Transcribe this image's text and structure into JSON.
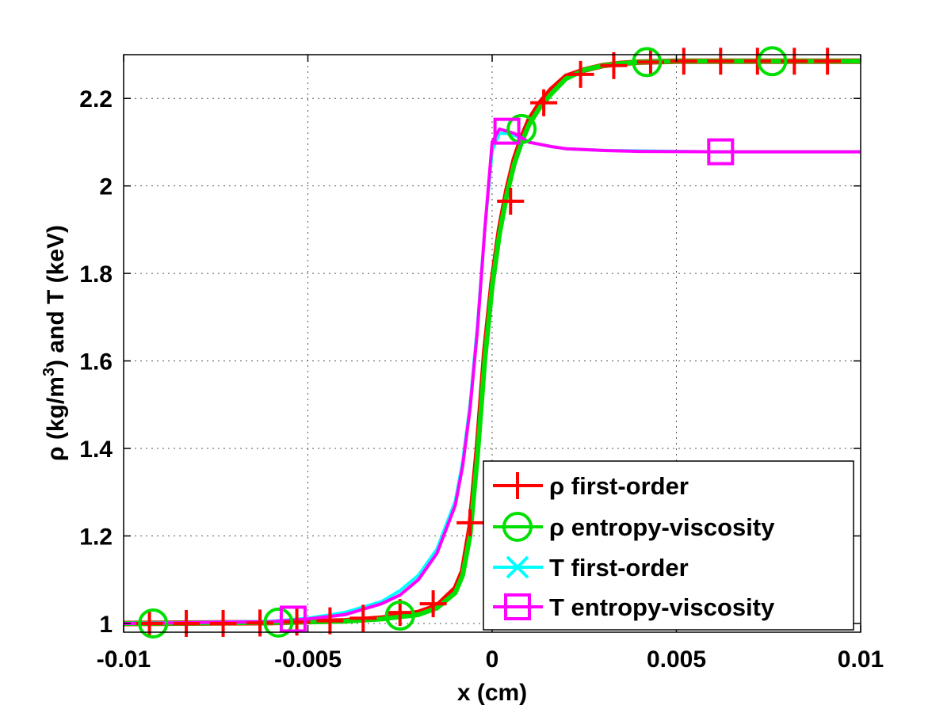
{
  "chart_data": {
    "type": "line",
    "xlabel": "x (cm)",
    "ylabel_parts": [
      "ρ (kg/m",
      "3",
      ") and T (keV)"
    ],
    "xlim": [
      -0.01,
      0.01
    ],
    "ylim": [
      0.98,
      2.3
    ],
    "xticks": [
      -0.01,
      -0.005,
      0,
      0.005,
      0.01
    ],
    "xtick_labels": [
      "-0.01",
      "-0.005",
      "0",
      "0.005",
      "0.01"
    ],
    "yticks": [
      1,
      1.2,
      1.4,
      1.6,
      1.8,
      2,
      2.2
    ],
    "ytick_labels": [
      "1",
      "1.2",
      "1.4",
      "1.6",
      "1.8",
      "2",
      "2.2"
    ],
    "grid": true,
    "legend_position": "bottom-right",
    "series": [
      {
        "name": "ρ first-order",
        "color": "#ff0000",
        "marker": "plus",
        "x": [
          -0.01,
          -0.006,
          -0.004,
          -0.003,
          -0.002,
          -0.0015,
          -0.001,
          -0.0008,
          -0.0006,
          -0.0004,
          -0.0002,
          0,
          0.0002,
          0.0004,
          0.0006,
          0.0008,
          0.001,
          0.0013,
          0.0016,
          0.002,
          0.0025,
          0.003,
          0.0035,
          0.004,
          0.005,
          0.006,
          0.008,
          0.01
        ],
        "y": [
          1.0,
          1.002,
          1.006,
          1.012,
          1.025,
          1.04,
          1.08,
          1.12,
          1.22,
          1.4,
          1.62,
          1.78,
          1.9,
          1.99,
          2.06,
          2.11,
          2.15,
          2.19,
          2.22,
          2.25,
          2.265,
          2.275,
          2.28,
          2.283,
          2.285,
          2.285,
          2.285,
          2.285
        ],
        "markers_x": [
          -0.0093,
          -0.0083,
          -0.0073,
          -0.0063,
          -0.0053,
          -0.0044,
          -0.0035,
          -0.0025,
          -0.0016,
          -0.0006,
          0.0005,
          0.0014,
          0.0024,
          0.0033,
          0.0043,
          0.0052,
          0.0062,
          0.0072,
          0.0082,
          0.0091
        ],
        "markers_y": [
          1.0,
          1.0,
          1.0,
          1.001,
          1.003,
          1.006,
          1.012,
          1.025,
          1.045,
          1.23,
          1.965,
          2.19,
          2.255,
          2.275,
          2.283,
          2.285,
          2.285,
          2.285,
          2.285,
          2.285
        ]
      },
      {
        "name": "ρ entropy-viscosity",
        "color": "#00e000",
        "marker": "circle",
        "x": [
          -0.01,
          -0.006,
          -0.004,
          -0.003,
          -0.002,
          -0.0015,
          -0.001,
          -0.0008,
          -0.0006,
          -0.0004,
          -0.0002,
          0,
          0.0002,
          0.0004,
          0.0006,
          0.0008,
          0.001,
          0.0013,
          0.0016,
          0.002,
          0.0025,
          0.003,
          0.0035,
          0.004,
          0.005,
          0.006,
          0.008,
          0.01
        ],
        "y": [
          1.0,
          1.002,
          1.005,
          1.01,
          1.02,
          1.035,
          1.07,
          1.11,
          1.2,
          1.38,
          1.6,
          1.77,
          1.89,
          1.98,
          2.05,
          2.1,
          2.14,
          2.18,
          2.21,
          2.245,
          2.265,
          2.275,
          2.28,
          2.283,
          2.285,
          2.285,
          2.285,
          2.285
        ],
        "markers_x": [
          -0.0092,
          -0.0058,
          -0.0025,
          0.0008,
          0.0042,
          0.0076
        ],
        "markers_y": [
          1.0,
          1.002,
          1.018,
          2.13,
          2.283,
          2.285
        ]
      },
      {
        "name": "T first-order",
        "color": "#00ffff",
        "marker": "x",
        "x": [
          -0.01,
          -0.006,
          -0.005,
          -0.004,
          -0.003,
          -0.0025,
          -0.002,
          -0.0015,
          -0.001,
          -0.0008,
          -0.0006,
          -0.0004,
          -0.0002,
          0,
          0.0002,
          0.0004,
          0.0006,
          0.0008,
          0.001,
          0.0013,
          0.0016,
          0.002,
          0.003,
          0.004,
          0.006,
          0.008,
          0.01
        ],
        "y": [
          1.0,
          1.005,
          1.012,
          1.025,
          1.05,
          1.075,
          1.11,
          1.17,
          1.28,
          1.37,
          1.5,
          1.68,
          1.9,
          2.08,
          2.12,
          2.12,
          2.115,
          2.11,
          2.1,
          2.095,
          2.09,
          2.085,
          2.081,
          2.08,
          2.078,
          2.078,
          2.078
        ],
        "markers_x": [],
        "markers_y": []
      },
      {
        "name": "T entropy-viscosity",
        "color": "#ff00ff",
        "marker": "square",
        "x": [
          -0.01,
          -0.006,
          -0.005,
          -0.004,
          -0.003,
          -0.0025,
          -0.002,
          -0.0015,
          -0.001,
          -0.0008,
          -0.0006,
          -0.0004,
          -0.0002,
          0,
          0.0002,
          0.0004,
          0.0006,
          0.0008,
          0.001,
          0.0013,
          0.0016,
          0.002,
          0.003,
          0.004,
          0.006,
          0.008,
          0.01
        ],
        "y": [
          1.0,
          1.004,
          1.01,
          1.02,
          1.045,
          1.065,
          1.1,
          1.16,
          1.27,
          1.36,
          1.49,
          1.67,
          1.9,
          2.1,
          2.13,
          2.125,
          2.12,
          2.11,
          2.1,
          2.095,
          2.09,
          2.085,
          2.081,
          2.079,
          2.078,
          2.078,
          2.078
        ],
        "markers_x": [
          -0.0054,
          0.0004,
          0.0062
        ],
        "markers_y": [
          1.01,
          2.125,
          2.078
        ]
      }
    ]
  }
}
